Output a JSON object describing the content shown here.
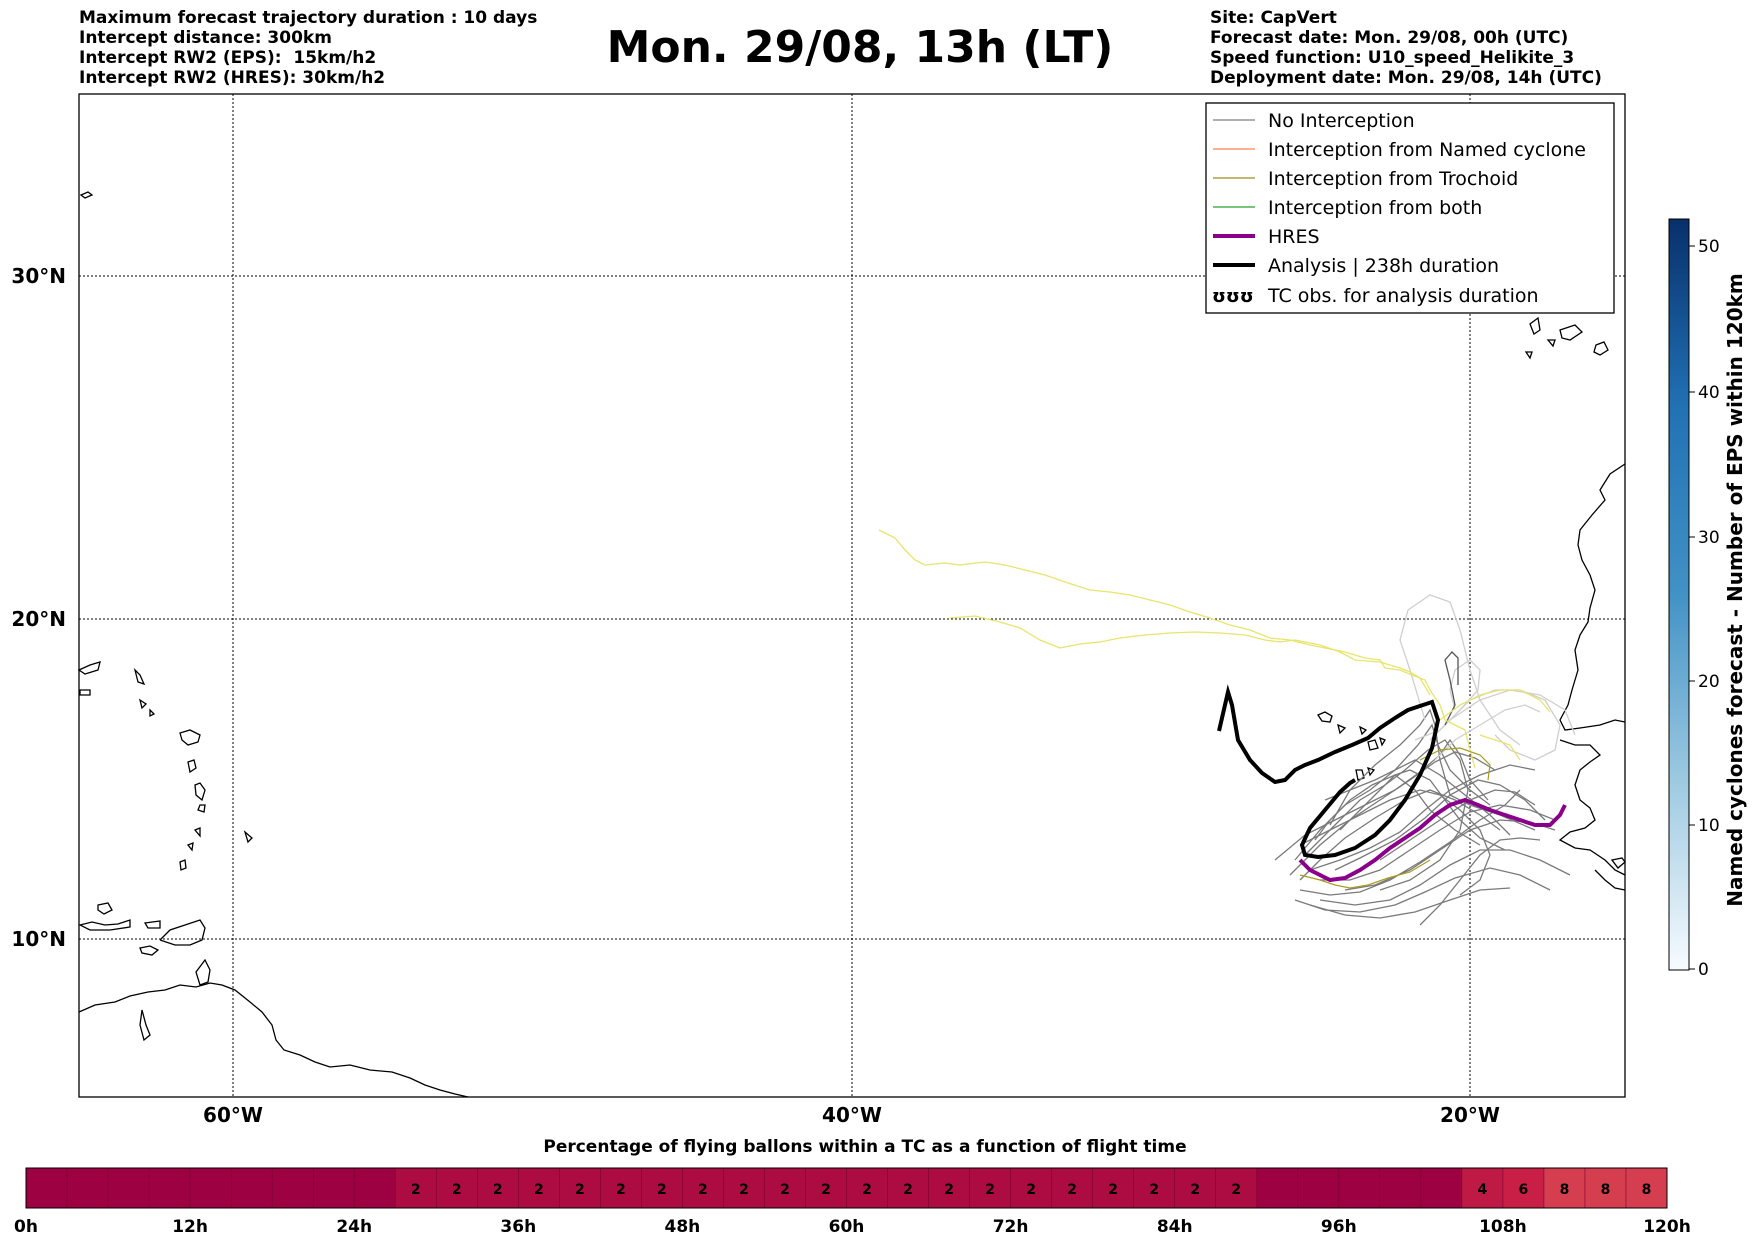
{
  "header": {
    "left_lines": [
      "Maximum forecast trajectory duration : 10 days",
      "Intercept distance: 300km",
      "Intercept RW2 (EPS):  15km/h2",
      "Intercept RW2 (HRES): 30km/h2"
    ],
    "title": "Mon. 29/08, 13h (LT)",
    "right_lines": [
      "Site: CapVert",
      "Forecast date: Mon. 29/08, 00h (UTC)",
      "Speed function: U10_speed_Helikite_3",
      "Deployment date: Mon. 29/08, 14h (UTC)"
    ]
  },
  "map": {
    "lat_labels": [
      "30°N",
      "20°N",
      "10°N"
    ],
    "lon_labels": [
      "60°W",
      "40°W",
      "20°W"
    ]
  },
  "legend": {
    "items": [
      {
        "label": "No Interception",
        "color": "#808080"
      },
      {
        "label": "Interception from Named cyclone",
        "color": "#ff7f50"
      },
      {
        "label": "Interception from Trochoid",
        "color": "#9b8f1a"
      },
      {
        "label": "Interception from both",
        "color": "#2ca02c"
      },
      {
        "label": "HRES",
        "color": "#8b008b"
      },
      {
        "label": "Analysis | 238h duration",
        "color": "#000000"
      },
      {
        "label": "TC obs. for analysis duration",
        "icon": "cyclone-symbol-icon"
      }
    ],
    "tc_symbol": "ʊʊʊ"
  },
  "colorbar": {
    "label": "Named cyclones forecast - Number of EPS within 120km",
    "ticks": [
      "50",
      "40",
      "30",
      "20",
      "10",
      "0"
    ],
    "colors": [
      "#08306b",
      "#f7fbff"
    ]
  },
  "timeline": {
    "title": "Percentage of flying ballons within a TC as a function of flight time",
    "tick_labels": [
      "0h",
      "12h",
      "24h",
      "36h",
      "48h",
      "60h",
      "72h",
      "84h",
      "96h",
      "108h",
      "120h"
    ],
    "cells": [
      "",
      "",
      "",
      "",
      "",
      "",
      "",
      "",
      "",
      "2",
      "2",
      "2",
      "2",
      "2",
      "2",
      "2",
      "2",
      "2",
      "2",
      "2",
      "2",
      "2",
      "2",
      "2",
      "2",
      "2",
      "2",
      "2",
      "2",
      "2",
      "",
      "",
      "",
      "",
      "",
      "4",
      "6",
      "8",
      "8",
      "8"
    ],
    "colors": {
      "base": "#9e0142",
      "level2": "#ad0c43",
      "level4": "#bf1a45",
      "level6": "#c91f46",
      "level8": "#d53e4f"
    }
  }
}
